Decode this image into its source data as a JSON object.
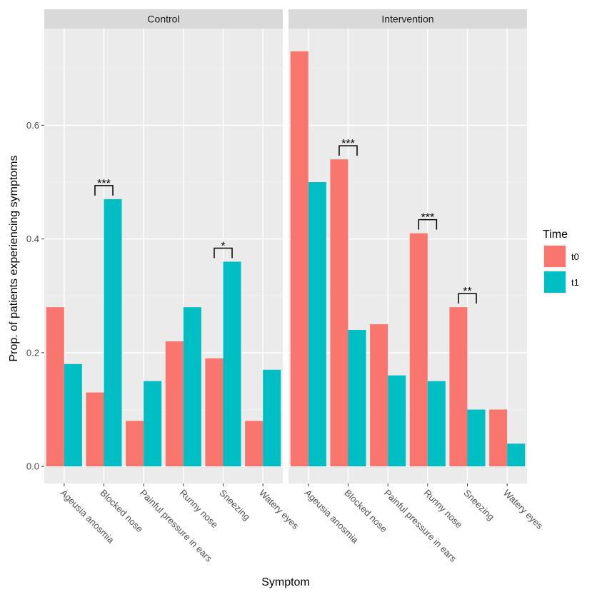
{
  "chart_data": {
    "type": "bar",
    "xlabel": "Symptom",
    "ylabel": "Prop. of patients experiencing symptoms",
    "ylim": [
      -0.03,
      0.77
    ],
    "yticks": [
      0.0,
      0.2,
      0.4,
      0.6
    ],
    "ytick_labels": [
      "0.0",
      "0.2",
      "0.4",
      "0.6"
    ],
    "categories": [
      "Ageusia anosmia",
      "Blocked nose",
      "Painful pressure in ears",
      "Runny nose",
      "Sneezing",
      "Watery eyes"
    ],
    "legend": {
      "title": "Time",
      "position": "right",
      "entries": [
        {
          "name": "t0",
          "color": "#F8766D"
        },
        {
          "name": "t1",
          "color": "#00BFC4"
        }
      ]
    },
    "panels": [
      {
        "title": "Control",
        "series": [
          {
            "name": "t0",
            "values": [
              0.28,
              0.13,
              0.08,
              0.22,
              0.19,
              0.08
            ]
          },
          {
            "name": "t1",
            "values": [
              0.18,
              0.47,
              0.15,
              0.28,
              0.36,
              0.17
            ]
          }
        ],
        "significance": [
          {
            "category": "Blocked nose",
            "label": "***"
          },
          {
            "category": "Sneezing",
            "label": "*"
          }
        ]
      },
      {
        "title": "Intervention",
        "series": [
          {
            "name": "t0",
            "values": [
              0.73,
              0.54,
              0.25,
              0.41,
              0.28,
              0.1
            ]
          },
          {
            "name": "t1",
            "values": [
              0.5,
              0.24,
              0.16,
              0.15,
              0.1,
              0.04
            ]
          }
        ],
        "significance": [
          {
            "category": "Blocked nose",
            "label": "***"
          },
          {
            "category": "Runny nose",
            "label": "***"
          },
          {
            "category": "Sneezing",
            "label": "**"
          }
        ]
      }
    ]
  },
  "colors": {
    "panel_bg": "#EBEBEB",
    "strip_bg": "#D9D9D9",
    "grid_major": "#FFFFFF",
    "grid_minor": "#F5F5F5",
    "t0": "#F8766D",
    "t1": "#00BFC4"
  }
}
